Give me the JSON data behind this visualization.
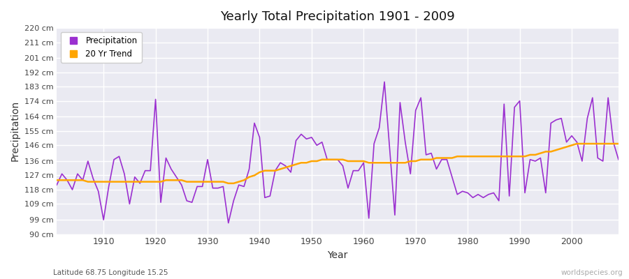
{
  "title": "Yearly Total Precipitation 1901 - 2009",
  "xlabel": "Year",
  "ylabel": "Precipitation",
  "subtitle_left": "Latitude 68.75 Longitude 15.25",
  "subtitle_right": "worldspecies.org",
  "line_color": "#9B30D0",
  "trend_color": "#FFA500",
  "fig_bg_color": "#FFFFFF",
  "plot_bg_color": "#EAEAF2",
  "grid_color": "#FFFFFF",
  "ylim": [
    90,
    220
  ],
  "ytick_labels": [
    "90 cm",
    "99 cm",
    "109 cm",
    "118 cm",
    "127 cm",
    "136 cm",
    "146 cm",
    "155 cm",
    "164 cm",
    "174 cm",
    "183 cm",
    "192 cm",
    "201 cm",
    "211 cm",
    "220 cm"
  ],
  "ytick_values": [
    90,
    99,
    109,
    118,
    127,
    136,
    146,
    155,
    164,
    174,
    183,
    192,
    201,
    211,
    220
  ],
  "xtick_positions": [
    1910,
    1920,
    1930,
    1940,
    1950,
    1960,
    1970,
    1980,
    1990,
    2000
  ],
  "years": [
    1901,
    1902,
    1903,
    1904,
    1905,
    1906,
    1907,
    1908,
    1909,
    1910,
    1911,
    1912,
    1913,
    1914,
    1915,
    1916,
    1917,
    1918,
    1919,
    1920,
    1921,
    1922,
    1923,
    1924,
    1925,
    1926,
    1927,
    1928,
    1929,
    1930,
    1931,
    1932,
    1933,
    1934,
    1935,
    1936,
    1937,
    1938,
    1939,
    1940,
    1941,
    1942,
    1943,
    1944,
    1945,
    1946,
    1947,
    1948,
    1949,
    1950,
    1951,
    1952,
    1953,
    1954,
    1955,
    1956,
    1957,
    1958,
    1959,
    1960,
    1961,
    1962,
    1963,
    1964,
    1965,
    1966,
    1967,
    1968,
    1969,
    1970,
    1971,
    1972,
    1973,
    1974,
    1975,
    1976,
    1977,
    1978,
    1979,
    1980,
    1981,
    1982,
    1983,
    1984,
    1985,
    1986,
    1987,
    1988,
    1989,
    1990,
    1991,
    1992,
    1993,
    1994,
    1995,
    1996,
    1997,
    1998,
    1999,
    2000,
    2001,
    2002,
    2003,
    2004,
    2005,
    2006,
    2007,
    2008,
    2009
  ],
  "precipitation": [
    121,
    128,
    124,
    118,
    128,
    124,
    136,
    125,
    117,
    99,
    120,
    137,
    139,
    128,
    109,
    126,
    122,
    130,
    130,
    175,
    110,
    138,
    131,
    126,
    121,
    111,
    110,
    120,
    120,
    137,
    119,
    119,
    120,
    97,
    111,
    121,
    120,
    131,
    160,
    151,
    113,
    114,
    130,
    135,
    133,
    129,
    149,
    153,
    150,
    151,
    146,
    148,
    137,
    137,
    137,
    133,
    119,
    130,
    130,
    135,
    100,
    147,
    157,
    186,
    144,
    102,
    173,
    148,
    128,
    168,
    176,
    140,
    141,
    131,
    137,
    137,
    126,
    115,
    117,
    116,
    113,
    115,
    113,
    115,
    116,
    111,
    172,
    114,
    170,
    174,
    116,
    137,
    136,
    138,
    116,
    160,
    162,
    163,
    148,
    152,
    148,
    136,
    163,
    176,
    138,
    136,
    176,
    148,
    137
  ],
  "trend": [
    124,
    124,
    124,
    124,
    124,
    124,
    123,
    123,
    123,
    123,
    123,
    123,
    123,
    123,
    123,
    123,
    123,
    123,
    123,
    123,
    123,
    124,
    124,
    124,
    124,
    123,
    123,
    123,
    123,
    123,
    123,
    123,
    123,
    122,
    122,
    123,
    124,
    126,
    127,
    129,
    130,
    130,
    130,
    131,
    132,
    133,
    134,
    135,
    135,
    136,
    136,
    137,
    137,
    137,
    137,
    137,
    136,
    136,
    136,
    136,
    135,
    135,
    135,
    135,
    135,
    135,
    135,
    135,
    136,
    136,
    137,
    137,
    137,
    138,
    138,
    138,
    138,
    139,
    139,
    139,
    139,
    139,
    139,
    139,
    139,
    139,
    139,
    139,
    139,
    139,
    139,
    140,
    140,
    141,
    142,
    142,
    143,
    144,
    145,
    146,
    147,
    147,
    147,
    147,
    147,
    147,
    147,
    147,
    147
  ]
}
